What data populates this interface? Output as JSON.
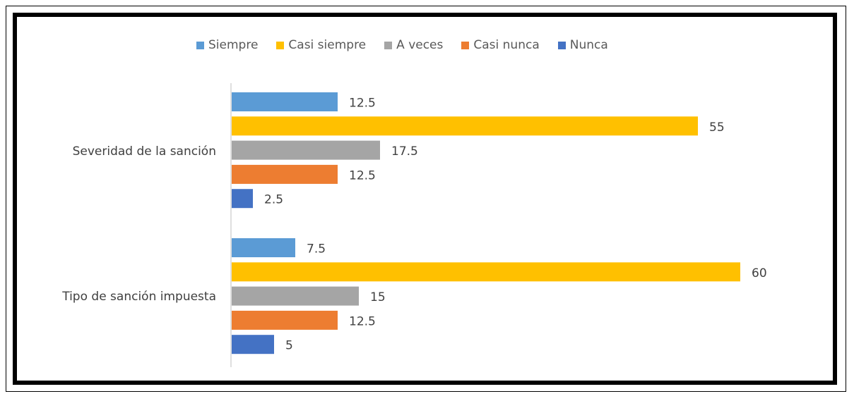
{
  "chart_data": {
    "type": "bar",
    "orientation": "horizontal",
    "categories": [
      "Severidad de la sanción",
      "Tipo de sanción impuesta"
    ],
    "series": [
      {
        "name": "Siempre",
        "color": "#5B9BD5",
        "values": [
          12.5,
          7.5
        ],
        "labels": [
          "12.5",
          "7.5"
        ]
      },
      {
        "name": "Casi siempre",
        "color": "#FFC000",
        "values": [
          55,
          60
        ],
        "labels": [
          "55",
          "60"
        ]
      },
      {
        "name": "A veces",
        "color": "#A5A5A5",
        "values": [
          17.5,
          15
        ],
        "labels": [
          "17.5",
          "15"
        ]
      },
      {
        "name": "Casi nunca",
        "color": "#ED7D31",
        "values": [
          12.5,
          12.5
        ],
        "labels": [
          "12.5",
          "12.5"
        ]
      },
      {
        "name": "Nunca",
        "color": "#4472C4",
        "values": [
          2.5,
          5
        ],
        "labels": [
          "2.5",
          "5"
        ]
      }
    ],
    "xlim": [
      0,
      60
    ],
    "legend_position": "top",
    "grid": false,
    "title": "",
    "xlabel": "",
    "ylabel": ""
  }
}
